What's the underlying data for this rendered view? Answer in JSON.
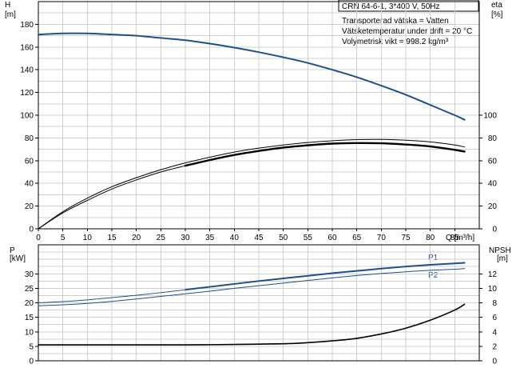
{
  "title_box": "CRN 64-6-1, 3*400 V, 50Hz",
  "info_lines": [
    "Transporterad vätska = Vatten",
    "Vätsketemperatur under drift = 20 °C",
    "Volymetrisk vikt = 998.2 kg/m³"
  ],
  "colors": {
    "blue": "#1f4e8c",
    "black": "#000000",
    "grid": "#cfcfcf"
  },
  "chart_data": [
    {
      "type": "line",
      "title": "CRN 64-6-1, 3*400 V, 50Hz",
      "xlabel": "Q [m³/h]",
      "x_tick_labels": [
        "0",
        "5",
        "10",
        "15",
        "20",
        "25",
        "30",
        "35",
        "40",
        "45",
        "50",
        "55",
        "60",
        "65",
        "70",
        "75",
        "80",
        "85"
      ],
      "xlim": [
        0,
        90
      ],
      "y_left": {
        "label_line1": "H",
        "label_line2": "[m]",
        "ylim": [
          0,
          200
        ],
        "tick_labels": [
          "0",
          "20",
          "40",
          "60",
          "80",
          "100",
          "120",
          "140",
          "160",
          "180"
        ],
        "tick_values": [
          0,
          20,
          40,
          60,
          80,
          100,
          120,
          140,
          160,
          180
        ]
      },
      "y_right": {
        "label_line1": "eta",
        "label_line2": "[%]",
        "ylim": [
          0,
          200
        ],
        "tick_labels": [
          "0",
          "20",
          "40",
          "60",
          "80",
          "100"
        ],
        "tick_values": [
          0,
          20,
          40,
          60,
          80,
          100
        ]
      },
      "grid": true,
      "series": [
        {
          "axis": "left",
          "color": "#1f4e8c",
          "width": 2,
          "x": [
            0,
            5,
            10,
            15,
            20,
            25,
            30,
            35,
            40,
            45,
            50,
            55,
            60,
            65,
            70,
            75,
            80,
            85,
            87
          ],
          "values": [
            171,
            172,
            172,
            171,
            170,
            168,
            166,
            163,
            159.5,
            155.5,
            151,
            146,
            140,
            133.5,
            126,
            118,
            109,
            100,
            96
          ]
        },
        {
          "axis": "right",
          "color": "#000000",
          "width": 1,
          "x": [
            0,
            5,
            10,
            15,
            20,
            25,
            30,
            35,
            40,
            45,
            50,
            55,
            60,
            65,
            70,
            75,
            80,
            85,
            87
          ],
          "values": [
            0,
            15,
            27,
            37,
            45,
            52,
            58,
            63,
            67.5,
            71,
            73.8,
            76,
            77.5,
            78.5,
            78.7,
            78,
            76.5,
            73.8,
            72
          ]
        },
        {
          "axis": "right",
          "color": "#000000",
          "width": 1,
          "x": [
            0,
            5,
            10,
            15,
            20,
            25,
            30,
            35,
            40,
            45,
            50,
            55,
            60,
            65,
            70,
            75,
            80,
            85,
            87
          ],
          "values": [
            0,
            14,
            25,
            35,
            43,
            50,
            55.5,
            60.5,
            65,
            68.5,
            71.5,
            73.5,
            75,
            75.5,
            75.3,
            74.2,
            72.5,
            69.5,
            68
          ]
        },
        {
          "axis": "right",
          "color": "#000000",
          "width": 2.4,
          "x": [
            30,
            35,
            40,
            45,
            50,
            55,
            60,
            65,
            70,
            75,
            80,
            85,
            87
          ],
          "values": [
            55.5,
            60.5,
            65,
            68.5,
            71.5,
            73.5,
            75,
            75.5,
            75.3,
            74.2,
            72.5,
            69.5,
            68
          ]
        }
      ]
    },
    {
      "type": "line",
      "xlim": [
        0,
        90
      ],
      "y_left": {
        "label_line1": "P",
        "label_line2": "[kW]",
        "ylim": [
          0,
          40
        ],
        "tick_labels": [
          "0",
          "5",
          "10",
          "15",
          "20",
          "25",
          "30"
        ],
        "tick_values": [
          0,
          5,
          10,
          15,
          20,
          25,
          30
        ]
      },
      "y_right": {
        "label_line1": "NPSH",
        "label_line2": "[m]",
        "ylim": [
          0,
          16
        ],
        "tick_labels": [
          "0",
          "2",
          "4",
          "6",
          "8",
          "10",
          "12"
        ],
        "tick_values": [
          0,
          2,
          4,
          6,
          8,
          10,
          12
        ]
      },
      "grid": true,
      "series_labels": [
        "P1",
        "P2"
      ],
      "series": [
        {
          "name": "P1",
          "axis": "left",
          "color": "#1f4e8c",
          "width": 1,
          "x": [
            0,
            5,
            10,
            15,
            20,
            25,
            30,
            35,
            40,
            45,
            50,
            55,
            60,
            65,
            70,
            75,
            80,
            85,
            87
          ],
          "values": [
            20,
            20.4,
            21,
            21.8,
            22.6,
            23.5,
            24.5,
            25.5,
            26.5,
            27.5,
            28.4,
            29.3,
            30.2,
            31,
            31.8,
            32.5,
            33.1,
            33.6,
            33.8
          ]
        },
        {
          "name": "P1",
          "axis": "left",
          "color": "#1f4e8c",
          "width": 2,
          "x": [
            30,
            35,
            40,
            45,
            50,
            55,
            60,
            65,
            70,
            75,
            80,
            85,
            87
          ],
          "values": [
            24.5,
            25.5,
            26.5,
            27.5,
            28.4,
            29.3,
            30.2,
            31,
            31.8,
            32.5,
            33.1,
            33.6,
            33.8
          ]
        },
        {
          "name": "P2",
          "axis": "left",
          "color": "#1f4e8c",
          "width": 1,
          "x": [
            0,
            5,
            10,
            15,
            20,
            25,
            30,
            35,
            40,
            45,
            50,
            55,
            60,
            65,
            70,
            75,
            80,
            85,
            87
          ],
          "values": [
            19,
            19.3,
            19.8,
            20.5,
            21.3,
            22.2,
            23.1,
            24,
            25,
            25.9,
            26.8,
            27.7,
            28.6,
            29.4,
            30.1,
            30.7,
            31.2,
            31.6,
            31.8
          ]
        },
        {
          "axis": "right",
          "color": "#000000",
          "width": 1.6,
          "x": [
            0,
            10,
            20,
            30,
            40,
            50,
            55,
            60,
            65,
            70,
            75,
            80,
            85,
            87
          ],
          "values": [
            2.2,
            2.2,
            2.2,
            2.2,
            2.25,
            2.35,
            2.5,
            2.75,
            3.1,
            3.7,
            4.5,
            5.6,
            7.0,
            7.8
          ]
        }
      ]
    }
  ]
}
